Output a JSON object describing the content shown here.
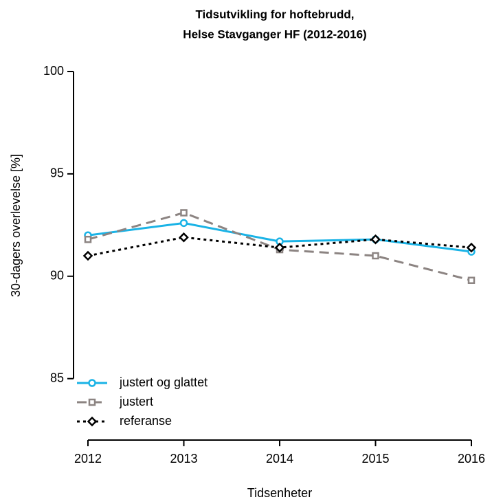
{
  "chart_data": {
    "type": "line",
    "title": [
      "Tidsutvikling for hoftebrudd,",
      "Helse Stavganger HF (2012-2016)"
    ],
    "x_label": "Tidsenheter",
    "y_label": "30-dagers overlevelse [%]",
    "x": [
      2012,
      2013,
      2014,
      2015,
      2016
    ],
    "xlim": [
      2012,
      2016
    ],
    "xticks": [
      2012,
      2013,
      2014,
      2015,
      2016
    ],
    "ylim": [
      82,
      100
    ],
    "yticks": [
      85,
      90,
      95,
      100
    ],
    "legend": "bottom-left",
    "series": [
      {
        "name": "justert og glattet",
        "color": "#1ab3e6",
        "style": "solid",
        "marker": "circle",
        "values": [
          92.0,
          92.6,
          91.7,
          91.8,
          91.2
        ]
      },
      {
        "name": "justert",
        "color": "#8c8482",
        "style": "dashed",
        "marker": "square",
        "values": [
          91.8,
          93.1,
          91.3,
          91.0,
          89.8
        ]
      },
      {
        "name": "referanse",
        "color": "#000000",
        "style": "dotted",
        "marker": "diamond",
        "values": [
          91.0,
          91.9,
          91.4,
          91.8,
          91.4
        ]
      }
    ]
  }
}
